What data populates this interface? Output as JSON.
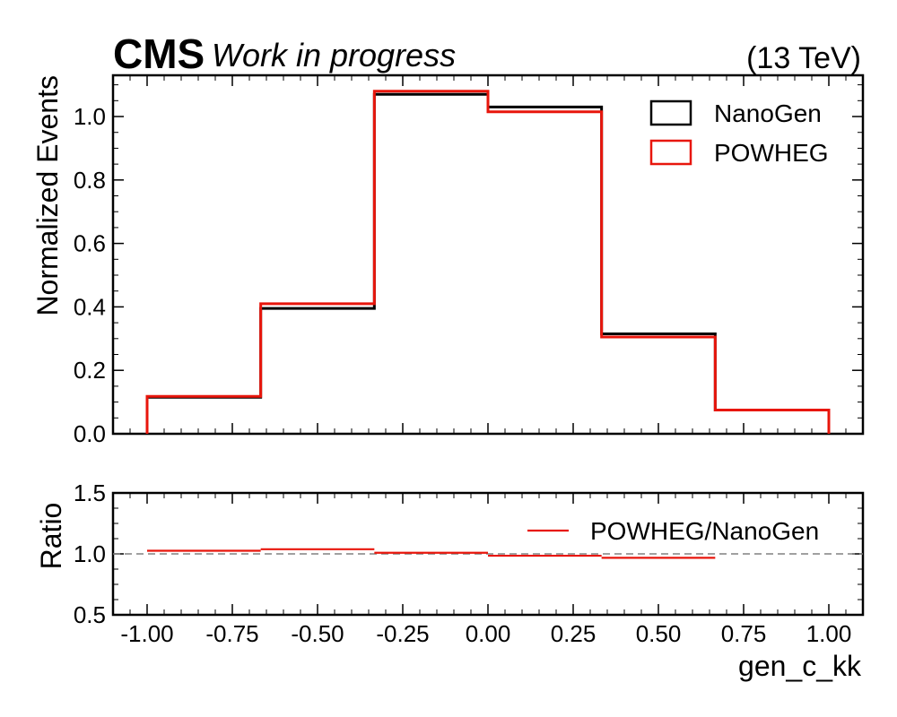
{
  "header": {
    "experiment": "CMS",
    "status": "Work in progress",
    "energy": "(13 TeV)"
  },
  "chart_data": [
    {
      "type": "histogram",
      "bin_edges": [
        -1.0,
        -0.6667,
        -0.3333,
        0.0,
        0.3333,
        0.6667,
        1.0
      ],
      "series": [
        {
          "name": "NanoGen",
          "color": "#000000",
          "values": [
            0.115,
            0.395,
            1.07,
            1.03,
            0.315,
            0.075
          ]
        },
        {
          "name": "POWHEG",
          "color": "#e8160c",
          "values": [
            0.118,
            0.41,
            1.08,
            1.015,
            0.305,
            0.075
          ]
        }
      ],
      "ylabel": "Normalized Events",
      "ylim": [
        0.0,
        1.13
      ],
      "xlim": [
        -1.1,
        1.1
      ],
      "yticks": [
        "0.0",
        "0.2",
        "0.4",
        "0.6",
        "0.8",
        "1.0"
      ],
      "legend": "top-right"
    },
    {
      "type": "line",
      "bin_edges": [
        -1.0,
        -0.6667,
        -0.3333,
        0.0,
        0.3333,
        0.6667,
        1.0
      ],
      "series": [
        {
          "name": "POWHEG/NanoGen",
          "color": "#e8160c",
          "values": [
            1.026,
            1.038,
            1.009,
            0.985,
            0.968,
            null
          ]
        }
      ],
      "reference_line": 1.0,
      "ylabel": "Ratio",
      "xlabel": "gen_c_kk",
      "ylim": [
        0.5,
        1.5
      ],
      "xlim": [
        -1.1,
        1.1
      ],
      "yticks": [
        "0.5",
        "1.0",
        "1.5"
      ],
      "xticks": [
        "-1.00",
        "-0.75",
        "-0.50",
        "-0.25",
        "0.00",
        "0.25",
        "0.50",
        "0.75",
        "1.00"
      ],
      "legend": "top-right"
    }
  ]
}
